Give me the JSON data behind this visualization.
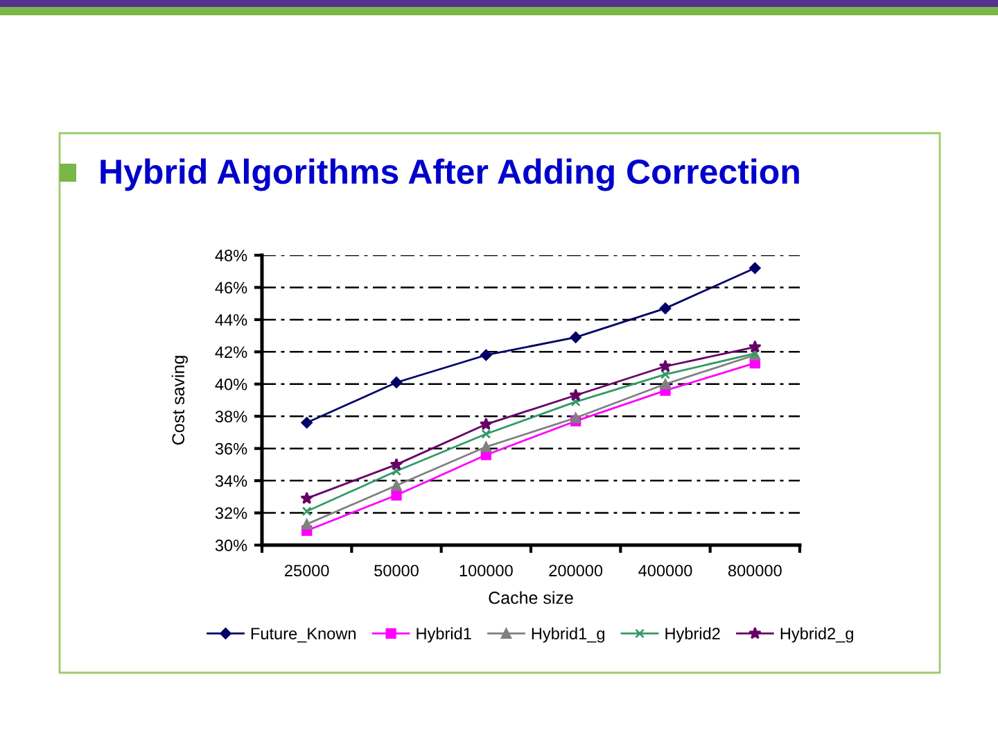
{
  "chart_data": {
    "type": "line",
    "title": "Hybrid Algorithms After Adding Correction",
    "xlabel": "Cache size",
    "ylabel": "Cost saving",
    "categories": [
      "25000",
      "50000",
      "100000",
      "200000",
      "400000",
      "800000"
    ],
    "series": [
      {
        "name": "Future_Known",
        "color": "#000066",
        "marker": "diamond",
        "values": [
          37.6,
          40.1,
          41.8,
          42.9,
          44.7,
          47.2
        ]
      },
      {
        "name": "Hybrid1",
        "color": "#ff00ff",
        "marker": "square",
        "values": [
          30.9,
          33.1,
          35.6,
          37.7,
          39.6,
          41.3
        ]
      },
      {
        "name": "Hybrid1_g",
        "color": "#808080",
        "marker": "triangle",
        "values": [
          31.3,
          33.7,
          36.1,
          37.9,
          40.0,
          41.8
        ]
      },
      {
        "name": "Hybrid2",
        "color": "#339966",
        "marker": "cross",
        "values": [
          32.1,
          34.6,
          36.9,
          38.9,
          40.6,
          41.9
        ]
      },
      {
        "name": "Hybrid2_g",
        "color": "#660066",
        "marker": "star",
        "values": [
          32.9,
          35.0,
          37.5,
          39.3,
          41.1,
          42.3
        ]
      }
    ],
    "ylim": [
      30,
      48
    ],
    "yticks": [
      {
        "value": 30,
        "label": "30%"
      },
      {
        "value": 32,
        "label": "32%"
      },
      {
        "value": 34,
        "label": "34%"
      },
      {
        "value": 36,
        "label": "36%"
      },
      {
        "value": 38,
        "label": "38%"
      },
      {
        "value": 40,
        "label": "40%"
      },
      {
        "value": 42,
        "label": "42%"
      },
      {
        "value": 44,
        "label": "44%"
      },
      {
        "value": 46,
        "label": "46%"
      },
      {
        "value": 48,
        "label": "48%"
      }
    ],
    "grid": "y",
    "legend": "bottom"
  }
}
